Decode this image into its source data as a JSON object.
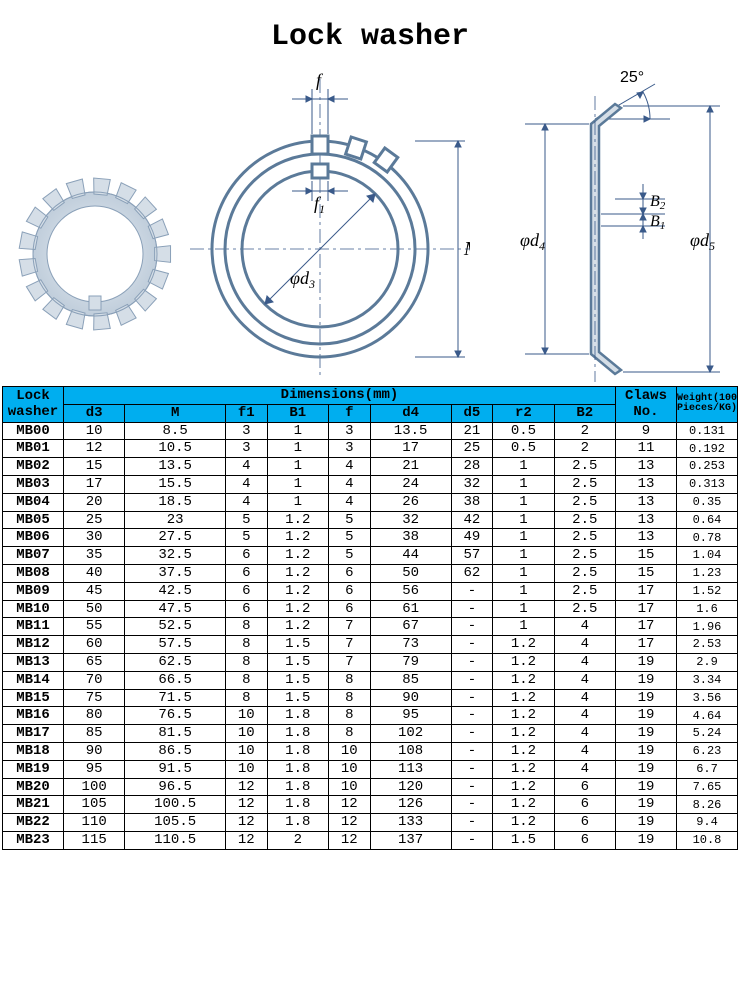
{
  "title": "Lock washer",
  "diagram_labels": {
    "f": "f",
    "f1": "f",
    "f1_sub": "1",
    "d3": "d",
    "d3_sub": "3",
    "M": "M",
    "angle": "25°",
    "B1": "B",
    "B1_sub": "1",
    "B2": "B",
    "B2_sub": "2",
    "d4": "d",
    "d4_sub": "4",
    "d5": "d",
    "d5_sub": "5",
    "phi": "φ"
  },
  "diagram_colors": {
    "outline": "#5b7a99",
    "fill_light": "#d5dee7",
    "fill_mid": "#b8c7d6",
    "dim_line": "#3a5a8a",
    "centerline": "#3a5a8a"
  },
  "table": {
    "header_bg": "#00aeef",
    "columns_group1": "Lock washer",
    "columns_group2": "Dimensions(mm)",
    "columns_group3": "Claws No.",
    "columns_group4": "Weight(100 Pieces/KG)",
    "columns": [
      "d3",
      "M",
      "f1",
      "B1",
      "f",
      "d4",
      "d5",
      "r2",
      "B2"
    ],
    "rows": [
      [
        "MB00",
        "10",
        "8.5",
        "3",
        "1",
        "3",
        "13.5",
        "21",
        "0.5",
        "2",
        "9",
        "0.131"
      ],
      [
        "MB01",
        "12",
        "10.5",
        "3",
        "1",
        "3",
        "17",
        "25",
        "0.5",
        "2",
        "11",
        "0.192"
      ],
      [
        "MB02",
        "15",
        "13.5",
        "4",
        "1",
        "4",
        "21",
        "28",
        "1",
        "2.5",
        "13",
        "0.253"
      ],
      [
        "MB03",
        "17",
        "15.5",
        "4",
        "1",
        "4",
        "24",
        "32",
        "1",
        "2.5",
        "13",
        "0.313"
      ],
      [
        "MB04",
        "20",
        "18.5",
        "4",
        "1",
        "4",
        "26",
        "38",
        "1",
        "2.5",
        "13",
        "0.35"
      ],
      [
        "MB05",
        "25",
        "23",
        "5",
        "1.2",
        "5",
        "32",
        "42",
        "1",
        "2.5",
        "13",
        "0.64"
      ],
      [
        "MB06",
        "30",
        "27.5",
        "5",
        "1.2",
        "5",
        "38",
        "49",
        "1",
        "2.5",
        "13",
        "0.78"
      ],
      [
        "MB07",
        "35",
        "32.5",
        "6",
        "1.2",
        "5",
        "44",
        "57",
        "1",
        "2.5",
        "15",
        "1.04"
      ],
      [
        "MB08",
        "40",
        "37.5",
        "6",
        "1.2",
        "6",
        "50",
        "62",
        "1",
        "2.5",
        "15",
        "1.23"
      ],
      [
        "MB09",
        "45",
        "42.5",
        "6",
        "1.2",
        "6",
        "56",
        "-",
        "1",
        "2.5",
        "17",
        "1.52"
      ],
      [
        "MB10",
        "50",
        "47.5",
        "6",
        "1.2",
        "6",
        "61",
        "-",
        "1",
        "2.5",
        "17",
        "1.6"
      ],
      [
        "MB11",
        "55",
        "52.5",
        "8",
        "1.2",
        "7",
        "67",
        "-",
        "1",
        "4",
        "17",
        "1.96"
      ],
      [
        "MB12",
        "60",
        "57.5",
        "8",
        "1.5",
        "7",
        "73",
        "-",
        "1.2",
        "4",
        "17",
        "2.53"
      ],
      [
        "MB13",
        "65",
        "62.5",
        "8",
        "1.5",
        "7",
        "79",
        "-",
        "1.2",
        "4",
        "19",
        "2.9"
      ],
      [
        "MB14",
        "70",
        "66.5",
        "8",
        "1.5",
        "8",
        "85",
        "-",
        "1.2",
        "4",
        "19",
        "3.34"
      ],
      [
        "MB15",
        "75",
        "71.5",
        "8",
        "1.5",
        "8",
        "90",
        "-",
        "1.2",
        "4",
        "19",
        "3.56"
      ],
      [
        "MB16",
        "80",
        "76.5",
        "10",
        "1.8",
        "8",
        "95",
        "-",
        "1.2",
        "4",
        "19",
        "4.64"
      ],
      [
        "MB17",
        "85",
        "81.5",
        "10",
        "1.8",
        "8",
        "102",
        "-",
        "1.2",
        "4",
        "19",
        "5.24"
      ],
      [
        "MB18",
        "90",
        "86.5",
        "10",
        "1.8",
        "10",
        "108",
        "-",
        "1.2",
        "4",
        "19",
        "6.23"
      ],
      [
        "MB19",
        "95",
        "91.5",
        "10",
        "1.8",
        "10",
        "113",
        "-",
        "1.2",
        "4",
        "19",
        "6.7"
      ],
      [
        "MB20",
        "100",
        "96.5",
        "12",
        "1.8",
        "10",
        "120",
        "-",
        "1.2",
        "6",
        "19",
        "7.65"
      ],
      [
        "MB21",
        "105",
        "100.5",
        "12",
        "1.8",
        "12",
        "126",
        "-",
        "1.2",
        "6",
        "19",
        "8.26"
      ],
      [
        "MB22",
        "110",
        "105.5",
        "12",
        "1.8",
        "12",
        "133",
        "-",
        "1.2",
        "6",
        "19",
        "9.4"
      ],
      [
        "MB23",
        "115",
        "110.5",
        "12",
        "2",
        "12",
        "137",
        "-",
        "1.5",
        "6",
        "19",
        "10.8"
      ]
    ]
  }
}
